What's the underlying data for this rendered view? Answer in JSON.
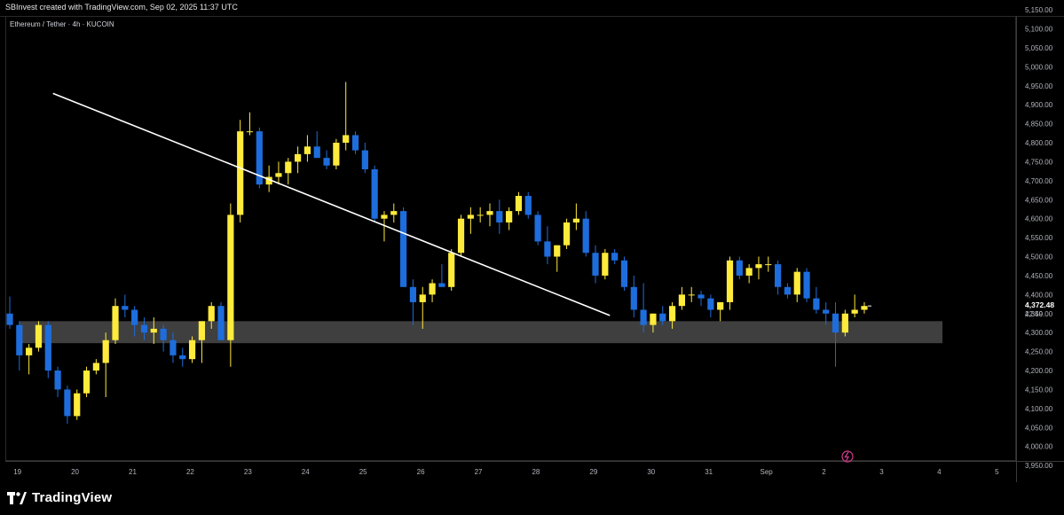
{
  "header": {
    "credit": "SBInvest created with TradingView.com, Sep 02, 2025 11:37 UTC"
  },
  "footer": {
    "brand": "TradingView"
  },
  "chart_data": {
    "type": "candlestick",
    "title": "Ethereum / Tether · 4h · KUCOIN",
    "timeframe_hours": 4,
    "up_color": "#ffeb3b",
    "down_color": "#1e6ddc",
    "ylim": [
      3925,
      5175
    ],
    "y_ticks": [
      "5,150.00",
      "5,100.00",
      "5,050.00",
      "5,000.00",
      "4,950.00",
      "4,900.00",
      "4,850.00",
      "4,800.00",
      "4,750.00",
      "4,700.00",
      "4,650.00",
      "4,600.00",
      "4,550.00",
      "4,500.00",
      "4,450.00",
      "4,400.00",
      "4,350.00",
      "4,300.00",
      "4,250.00",
      "4,200.00",
      "4,150.00",
      "4,100.00",
      "4,050.00",
      "4,000.00",
      "3,950.00"
    ],
    "x_ticks": [
      "19",
      "20",
      "21",
      "22",
      "23",
      "24",
      "25",
      "26",
      "27",
      "28",
      "29",
      "30",
      "31",
      "Sep",
      "2",
      "3",
      "4",
      "5"
    ],
    "last_price": "4,372.48",
    "countdown": "22:49",
    "support_zone": [
      4272,
      4330
    ],
    "trendline": [
      [
        4.5,
        4930
      ],
      [
        62.5,
        4345
      ]
    ],
    "candles": [
      [
        4350,
        4395,
        4310,
        4320
      ],
      [
        4320,
        4330,
        4200,
        4240
      ],
      [
        4240,
        4270,
        4190,
        4260
      ],
      [
        4260,
        4330,
        4250,
        4320
      ],
      [
        4320,
        4330,
        4180,
        4200
      ],
      [
        4200,
        4210,
        4130,
        4150
      ],
      [
        4150,
        4160,
        4060,
        4080
      ],
      [
        4080,
        4150,
        4070,
        4140
      ],
      [
        4140,
        4210,
        4130,
        4200
      ],
      [
        4200,
        4230,
        4190,
        4220
      ],
      [
        4220,
        4300,
        4130,
        4280
      ],
      [
        4280,
        4390,
        4270,
        4370
      ],
      [
        4370,
        4400,
        4340,
        4360
      ],
      [
        4360,
        4370,
        4290,
        4320
      ],
      [
        4320,
        4340,
        4280,
        4300
      ],
      [
        4300,
        4340,
        4270,
        4310
      ],
      [
        4310,
        4320,
        4250,
        4280
      ],
      [
        4280,
        4300,
        4220,
        4240
      ],
      [
        4240,
        4260,
        4210,
        4230
      ],
      [
        4230,
        4290,
        4220,
        4280
      ],
      [
        4280,
        4330,
        4220,
        4330
      ],
      [
        4330,
        4380,
        4310,
        4370
      ],
      [
        4370,
        4380,
        4280,
        4280
      ],
      [
        4280,
        4640,
        4210,
        4610
      ],
      [
        4610,
        4860,
        4590,
        4830
      ],
      [
        4830,
        4880,
        4820,
        4830
      ],
      [
        4830,
        4840,
        4680,
        4690
      ],
      [
        4690,
        4740,
        4670,
        4710
      ],
      [
        4710,
        4750,
        4690,
        4720
      ],
      [
        4720,
        4760,
        4690,
        4750
      ],
      [
        4750,
        4790,
        4720,
        4770
      ],
      [
        4770,
        4820,
        4750,
        4790
      ],
      [
        4790,
        4830,
        4760,
        4760
      ],
      [
        4760,
        4780,
        4730,
        4740
      ],
      [
        4740,
        4810,
        4730,
        4800
      ],
      [
        4800,
        4960,
        4780,
        4820
      ],
      [
        4820,
        4830,
        4770,
        4780
      ],
      [
        4780,
        4800,
        4720,
        4730
      ],
      [
        4730,
        4740,
        4590,
        4600
      ],
      [
        4600,
        4620,
        4540,
        4610
      ],
      [
        4610,
        4640,
        4590,
        4620
      ],
      [
        4620,
        4630,
        4430,
        4420
      ],
      [
        4420,
        4440,
        4320,
        4380
      ],
      [
        4380,
        4420,
        4310,
        4400
      ],
      [
        4400,
        4440,
        4380,
        4430
      ],
      [
        4430,
        4480,
        4420,
        4420
      ],
      [
        4420,
        4520,
        4410,
        4510
      ],
      [
        4510,
        4610,
        4500,
        4600
      ],
      [
        4600,
        4630,
        4560,
        4610
      ],
      [
        4610,
        4630,
        4590,
        4610
      ],
      [
        4610,
        4640,
        4580,
        4620
      ],
      [
        4620,
        4650,
        4560,
        4590
      ],
      [
        4590,
        4630,
        4570,
        4620
      ],
      [
        4620,
        4670,
        4610,
        4660
      ],
      [
        4660,
        4670,
        4600,
        4610
      ],
      [
        4610,
        4620,
        4530,
        4540
      ],
      [
        4540,
        4580,
        4480,
        4500
      ],
      [
        4500,
        4520,
        4460,
        4530
      ],
      [
        4530,
        4600,
        4520,
        4590
      ],
      [
        4590,
        4640,
        4570,
        4600
      ],
      [
        4600,
        4620,
        4500,
        4510
      ],
      [
        4510,
        4530,
        4430,
        4450
      ],
      [
        4450,
        4520,
        4440,
        4510
      ],
      [
        4510,
        4520,
        4480,
        4490
      ],
      [
        4490,
        4500,
        4410,
        4420
      ],
      [
        4420,
        4450,
        4340,
        4360
      ],
      [
        4360,
        4430,
        4300,
        4320
      ],
      [
        4320,
        4350,
        4300,
        4350
      ],
      [
        4350,
        4370,
        4320,
        4330
      ],
      [
        4330,
        4380,
        4310,
        4370
      ],
      [
        4370,
        4420,
        4360,
        4400
      ],
      [
        4400,
        4420,
        4380,
        4400
      ],
      [
        4400,
        4410,
        4370,
        4390
      ],
      [
        4390,
        4400,
        4340,
        4360
      ],
      [
        4360,
        4380,
        4330,
        4380
      ],
      [
        4380,
        4500,
        4360,
        4490
      ],
      [
        4490,
        4500,
        4440,
        4450
      ],
      [
        4450,
        4480,
        4430,
        4470
      ],
      [
        4470,
        4500,
        4440,
        4480
      ],
      [
        4480,
        4500,
        4460,
        4480
      ],
      [
        4480,
        4490,
        4400,
        4420
      ],
      [
        4420,
        4430,
        4390,
        4400
      ],
      [
        4400,
        4470,
        4380,
        4460
      ],
      [
        4460,
        4470,
        4380,
        4390
      ],
      [
        4390,
        4420,
        4350,
        4360
      ],
      [
        4360,
        4380,
        4320,
        4350
      ],
      [
        4350,
        4380,
        4210,
        4300
      ],
      [
        4300,
        4360,
        4290,
        4350
      ],
      [
        4350,
        4400,
        4340,
        4360
      ],
      [
        4360,
        4380,
        4350,
        4370
      ]
    ]
  }
}
